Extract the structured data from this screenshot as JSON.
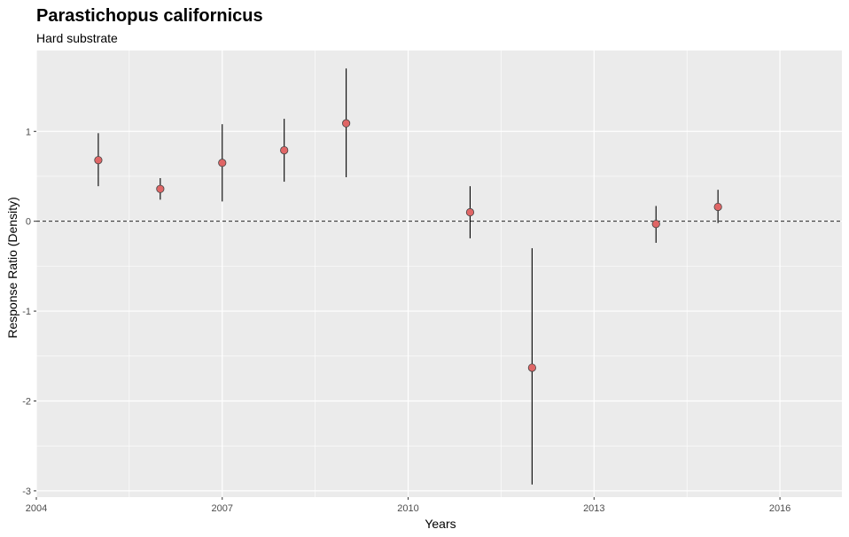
{
  "chart_data": {
    "type": "scatter",
    "title": "Parastichopus californicus",
    "subtitle": "Hard substrate",
    "xlabel": "Years",
    "ylabel": "Response Ratio (Density)",
    "xlim": [
      2004,
      2017
    ],
    "ylim": [
      -3.07,
      1.9
    ],
    "x_ticks": [
      2004,
      2007,
      2010,
      2013,
      2016
    ],
    "y_ticks": [
      -3,
      -2,
      -1,
      0,
      1
    ],
    "grid": true,
    "reference_line": {
      "y": 0,
      "style": "dashed"
    },
    "colors": {
      "panel_background": "#ebebeb",
      "grid_line": "#ffffff",
      "point_fill": "#e06666",
      "point_stroke": "#444444",
      "error_bar": "#000000"
    },
    "series": [
      {
        "points": [
          {
            "x": 2005,
            "y": 0.68,
            "ymin": 0.39,
            "ymax": 0.98
          },
          {
            "x": 2006,
            "y": 0.36,
            "ymin": 0.24,
            "ymax": 0.48
          },
          {
            "x": 2007,
            "y": 0.65,
            "ymin": 0.22,
            "ymax": 1.08
          },
          {
            "x": 2008,
            "y": 0.79,
            "ymin": 0.44,
            "ymax": 1.14
          },
          {
            "x": 2009,
            "y": 1.09,
            "ymin": 0.49,
            "ymax": 1.7
          },
          {
            "x": 2011,
            "y": 0.1,
            "ymin": -0.19,
            "ymax": 0.39
          },
          {
            "x": 2012,
            "y": -1.63,
            "ymin": -2.93,
            "ymax": -0.3
          },
          {
            "x": 2014,
            "y": -0.03,
            "ymin": -0.24,
            "ymax": 0.17
          },
          {
            "x": 2015,
            "y": 0.16,
            "ymin": -0.02,
            "ymax": 0.35
          }
        ]
      }
    ]
  }
}
